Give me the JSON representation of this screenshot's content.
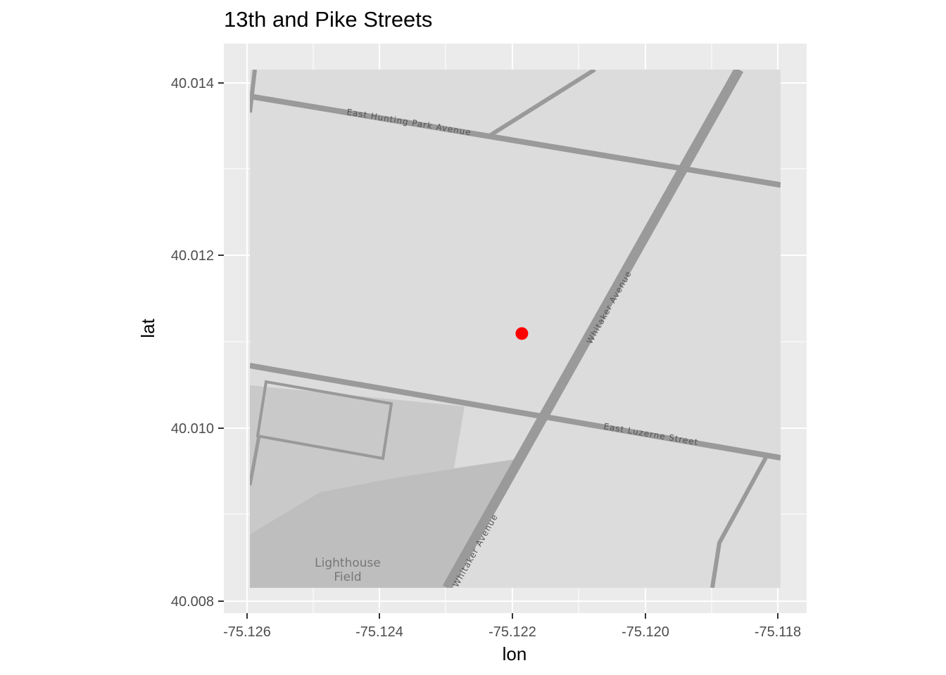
{
  "title": "13th and Pike Streets",
  "chart_data": {
    "type": "scatter",
    "xlabel": "lon",
    "ylabel": "lat",
    "xlim": [
      -75.1265,
      -75.1177
    ],
    "ylim": [
      40.0079,
      40.0145
    ],
    "x_ticks": [
      "-75.126",
      "-75.124",
      "-75.122",
      "-75.120",
      "-75.118"
    ],
    "y_ticks": [
      "40.008",
      "40.010",
      "40.012",
      "40.014"
    ],
    "points": [
      {
        "lon": -75.122,
        "lat": 40.01114,
        "color": "#ff0000"
      }
    ],
    "grid": true
  },
  "map": {
    "streets": {
      "hunting_park": "East Hunting Park Avenue",
      "whitaker_upper": "Whitaker Avenue",
      "whitaker_lower": "Whitaker Avenue",
      "luzerne": "East Luzerne Street"
    },
    "poi": {
      "line1": "Lighthouse",
      "line2": "Field"
    }
  },
  "colors": {
    "panel": "#ebebeb",
    "grid": "#ffffff",
    "land": "#dcdcdc",
    "park": "#c8c8c8",
    "park_dark": "#bebebe",
    "road": "#9a9a9a",
    "point": "#ff0000"
  }
}
